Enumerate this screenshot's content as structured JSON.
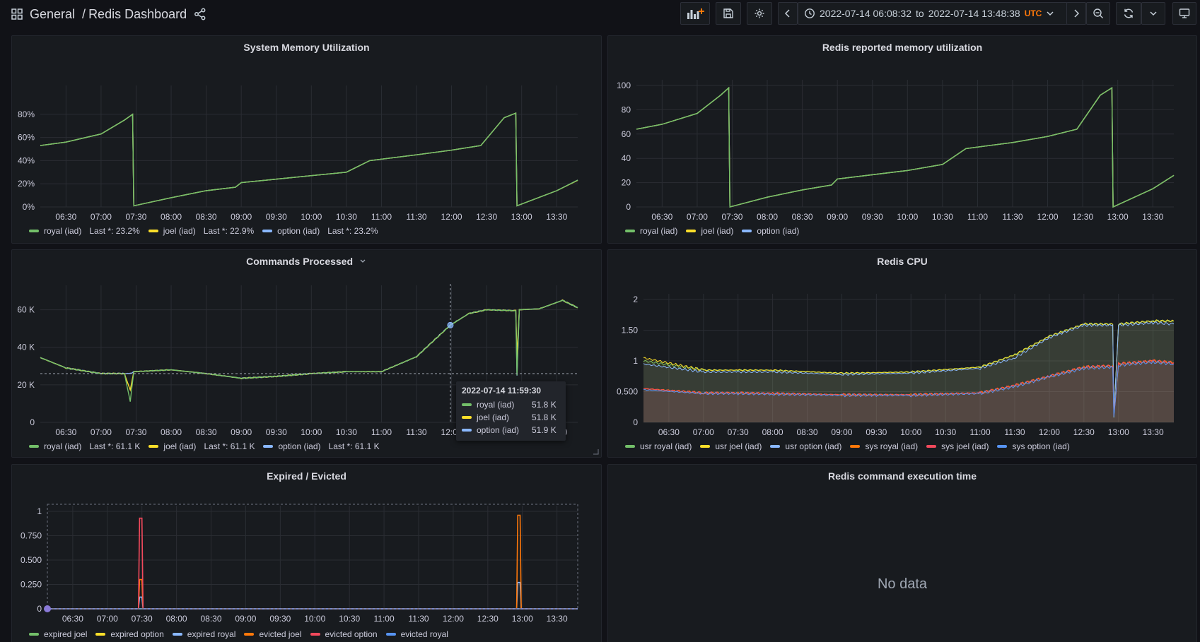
{
  "nav": {
    "breadcrumb_folder": "General",
    "breadcrumb_separator": "/",
    "dashboard_title": "Redis Dashboard",
    "time_from": "2022-07-14 06:08:32",
    "time_to_word": "to",
    "time_to": "2022-07-14 13:48:38",
    "timezone": "UTC",
    "icons": [
      "apps-icon",
      "share-icon",
      "add-panel-icon",
      "save-icon",
      "settings-icon",
      "chevron-left-icon",
      "clock-icon",
      "chevron-down-icon",
      "chevron-right-icon",
      "zoom-out-icon",
      "refresh-icon",
      "chevron-down-icon",
      "tv-mode-icon"
    ]
  },
  "colors": {
    "green": "#73bf69",
    "yellow": "#fade2a",
    "blue": "#8ab8ff",
    "orange": "#ff780a",
    "red": "#f2495c",
    "darkblue": "#5794f2",
    "orange_tz": "#ff780a"
  },
  "time_ticks": [
    "06:30",
    "07:00",
    "07:30",
    "08:00",
    "08:30",
    "09:00",
    "09:30",
    "10:00",
    "10:30",
    "11:00",
    "11:30",
    "12:00",
    "12:30",
    "13:00",
    "13:30"
  ],
  "panels": {
    "system_memory": {
      "title": "System Memory Utilization",
      "y_ticks": [
        "0%",
        "20%",
        "40%",
        "60%",
        "80%"
      ],
      "legend": [
        {
          "name": "royal (iad)",
          "color": "#73bf69",
          "last": "Last *: 23.2%"
        },
        {
          "name": "joel (iad)",
          "color": "#fade2a",
          "last": "Last *: 22.9%"
        },
        {
          "name": "option (iad)",
          "color": "#8ab8ff",
          "last": "Last *: 23.2%"
        }
      ]
    },
    "redis_memory": {
      "title": "Redis reported memory utilization",
      "y_ticks": [
        "0",
        "20",
        "40",
        "60",
        "80",
        "100"
      ],
      "legend": [
        {
          "name": "royal (iad)",
          "color": "#73bf69"
        },
        {
          "name": "joel (iad)",
          "color": "#fade2a"
        },
        {
          "name": "option (iad)",
          "color": "#8ab8ff"
        }
      ]
    },
    "commands": {
      "title": "Commands Processed",
      "y_ticks": [
        "0",
        "20 K",
        "40 K",
        "60 K"
      ],
      "legend": [
        {
          "name": "royal (iad)",
          "color": "#73bf69",
          "last": "Last *: 61.1 K"
        },
        {
          "name": "joel (iad)",
          "color": "#fade2a",
          "last": "Last *: 61.1 K"
        },
        {
          "name": "option (iad)",
          "color": "#8ab8ff",
          "last": "Last *: 61.1 K"
        }
      ],
      "tooltip": {
        "time": "2022-07-14 11:59:30",
        "rows": [
          {
            "name": "royal (iad)",
            "value": "51.8 K",
            "color": "#73bf69"
          },
          {
            "name": "joel (iad)",
            "value": "51.8 K",
            "color": "#fade2a"
          },
          {
            "name": "option (iad)",
            "value": "51.9 K",
            "color": "#8ab8ff"
          }
        ]
      }
    },
    "redis_cpu": {
      "title": "Redis CPU",
      "y_ticks": [
        "0",
        "0.500",
        "1",
        "1.50",
        "2"
      ],
      "legend": [
        {
          "name": "usr royal (iad)",
          "color": "#73bf69"
        },
        {
          "name": "usr joel (iad)",
          "color": "#fade2a"
        },
        {
          "name": "usr option (iad)",
          "color": "#8ab8ff"
        },
        {
          "name": "sys royal (iad)",
          "color": "#ff780a"
        },
        {
          "name": "sys joel (iad)",
          "color": "#f2495c"
        },
        {
          "name": "sys option (iad)",
          "color": "#5794f2"
        }
      ]
    },
    "expired": {
      "title": "Expired / Evicted",
      "y_ticks": [
        "0",
        "0.250",
        "0.500",
        "0.750",
        "1"
      ],
      "legend": [
        {
          "name": "expired joel",
          "color": "#73bf69"
        },
        {
          "name": "expired option",
          "color": "#fade2a"
        },
        {
          "name": "expired royal",
          "color": "#8ab8ff"
        },
        {
          "name": "evicted joel",
          "color": "#ff780a"
        },
        {
          "name": "evicted option",
          "color": "#f2495c"
        },
        {
          "name": "evicted royal",
          "color": "#5794f2"
        }
      ]
    },
    "exec_time": {
      "title": "Redis command execution time",
      "no_data": "No data"
    }
  },
  "chart_data": [
    {
      "type": "line",
      "title": "System Memory Utilization",
      "x": [
        "06:08",
        "06:30",
        "07:00",
        "07:20",
        "07:27",
        "07:28",
        "08:00",
        "08:30",
        "08:55",
        "09:00",
        "10:00",
        "10:30",
        "10:50",
        "11:30",
        "12:00",
        "12:25",
        "12:45",
        "12:55",
        "12:56",
        "13:30",
        "13:48"
      ],
      "ylim": [
        0,
        100
      ],
      "series": [
        {
          "name": "royal (iad)",
          "values": [
            53,
            56,
            63,
            75,
            80,
            1,
            8,
            14,
            17,
            21,
            27,
            30,
            40,
            45,
            49,
            53,
            77,
            81,
            1,
            14,
            23.2
          ]
        },
        {
          "name": "joel (iad)",
          "values": [
            53,
            56,
            63,
            75,
            80,
            1,
            8,
            14,
            17,
            21,
            27,
            30,
            40,
            45,
            49,
            53,
            77,
            81,
            1,
            14,
            22.9
          ]
        },
        {
          "name": "option (iad)",
          "values": [
            53,
            56,
            63,
            75,
            80,
            1,
            8,
            14,
            17,
            21,
            27,
            30,
            40,
            45,
            49,
            53,
            77,
            81,
            1,
            14,
            23.2
          ]
        }
      ]
    },
    {
      "type": "line",
      "title": "Redis reported memory utilization",
      "x": [
        "06:08",
        "06:30",
        "07:00",
        "07:20",
        "07:27",
        "07:28",
        "08:00",
        "08:30",
        "08:55",
        "09:00",
        "10:00",
        "10:30",
        "10:50",
        "11:30",
        "12:00",
        "12:25",
        "12:45",
        "12:55",
        "12:56",
        "13:30",
        "13:48"
      ],
      "ylim": [
        0,
        100
      ],
      "series": [
        {
          "name": "royal (iad)",
          "values": [
            64,
            68,
            77,
            92,
            98,
            0,
            8,
            14,
            18,
            23,
            30,
            35,
            48,
            53,
            58,
            64,
            92,
            98,
            0,
            15,
            26
          ]
        },
        {
          "name": "joel (iad)",
          "values": [
            64,
            68,
            77,
            92,
            98,
            0,
            8,
            14,
            18,
            23,
            30,
            35,
            48,
            53,
            58,
            64,
            92,
            98,
            0,
            15,
            26
          ]
        },
        {
          "name": "option (iad)",
          "values": [
            64,
            68,
            77,
            92,
            98,
            0,
            8,
            14,
            18,
            23,
            30,
            35,
            48,
            53,
            58,
            64,
            92,
            98,
            0,
            15,
            26
          ]
        }
      ]
    },
    {
      "type": "line",
      "title": "Commands Processed",
      "x": [
        "06:08",
        "06:30",
        "07:00",
        "07:20",
        "07:25",
        "07:28",
        "08:00",
        "08:30",
        "09:00",
        "09:30",
        "10:00",
        "10:30",
        "11:00",
        "11:30",
        "11:59",
        "12:15",
        "12:30",
        "12:55",
        "12:56",
        "12:58",
        "13:15",
        "13:35",
        "13:48"
      ],
      "ylim": [
        0,
        70000
      ],
      "series": [
        {
          "name": "royal (iad)",
          "values": [
            34500,
            29000,
            26000,
            26000,
            11000,
            27000,
            28000,
            26000,
            23500,
            24500,
            26000,
            27000,
            27000,
            35000,
            51800,
            58000,
            60000,
            59500,
            25000,
            60000,
            60500,
            65000,
            61100
          ]
        },
        {
          "name": "joel (iad)",
          "values": [
            34500,
            29000,
            26000,
            26000,
            17000,
            27000,
            28000,
            26000,
            23500,
            24500,
            26000,
            27000,
            27000,
            35000,
            51800,
            58000,
            60000,
            59500,
            35000,
            60000,
            60500,
            65000,
            61100
          ]
        },
        {
          "name": "option (iad)",
          "values": [
            34500,
            29000,
            26000,
            26000,
            26000,
            27000,
            28000,
            26000,
            23500,
            24500,
            26000,
            27000,
            27000,
            35000,
            51900,
            58000,
            60000,
            59500,
            25000,
            60000,
            60500,
            65000,
            61100
          ]
        }
      ]
    },
    {
      "type": "area",
      "title": "Redis CPU",
      "x": [
        "06:08",
        "07:00",
        "07:30",
        "08:00",
        "09:00",
        "10:00",
        "11:00",
        "11:30",
        "12:00",
        "12:30",
        "12:55",
        "12:56",
        "13:00",
        "13:30",
        "13:48"
      ],
      "ylim": [
        0,
        2
      ],
      "series": [
        {
          "name": "usr royal (iad)",
          "values": [
            1.0,
            0.85,
            0.85,
            0.85,
            0.8,
            0.82,
            0.9,
            1.1,
            1.4,
            1.6,
            1.6,
            0.1,
            1.6,
            1.65,
            1.65
          ]
        },
        {
          "name": "usr joel (iad)",
          "values": [
            1.05,
            0.85,
            0.85,
            0.85,
            0.8,
            0.82,
            0.9,
            1.1,
            1.4,
            1.6,
            1.6,
            0.1,
            1.6,
            1.65,
            1.65
          ]
        },
        {
          "name": "usr option (iad)",
          "values": [
            0.95,
            0.82,
            0.82,
            0.82,
            0.78,
            0.8,
            0.88,
            1.05,
            1.38,
            1.58,
            1.58,
            0.1,
            1.58,
            1.62,
            1.6
          ]
        },
        {
          "name": "sys royal (iad)",
          "values": [
            0.55,
            0.48,
            0.48,
            0.47,
            0.45,
            0.45,
            0.48,
            0.6,
            0.75,
            0.9,
            0.92,
            0.1,
            0.95,
            1.0,
            0.97
          ]
        },
        {
          "name": "sys joel (iad)",
          "values": [
            0.55,
            0.48,
            0.48,
            0.47,
            0.45,
            0.45,
            0.48,
            0.6,
            0.75,
            0.9,
            0.92,
            0.1,
            0.95,
            1.0,
            0.97
          ]
        },
        {
          "name": "sys option (iad)",
          "values": [
            0.53,
            0.47,
            0.47,
            0.46,
            0.44,
            0.44,
            0.47,
            0.58,
            0.74,
            0.88,
            0.9,
            0.1,
            0.93,
            0.98,
            0.95
          ]
        }
      ]
    },
    {
      "type": "line",
      "title": "Expired / Evicted",
      "x": [
        "06:08",
        "07:27",
        "07:28",
        "07:30",
        "07:31",
        "12:55",
        "12:56",
        "12:58",
        "12:59",
        "13:48"
      ],
      "ylim": [
        0,
        1
      ],
      "series": [
        {
          "name": "expired joel",
          "values": [
            0,
            0,
            0,
            0,
            0,
            0,
            0,
            0,
            0,
            0
          ]
        },
        {
          "name": "expired option",
          "values": [
            0,
            0,
            0,
            0,
            0,
            0,
            0,
            0,
            0,
            0
          ]
        },
        {
          "name": "expired royal",
          "values": [
            0,
            0,
            0.12,
            0.12,
            0,
            0,
            0.27,
            0.27,
            0,
            0
          ]
        },
        {
          "name": "evicted joel",
          "values": [
            0,
            0,
            0.3,
            0.3,
            0,
            0,
            0.96,
            0.96,
            0,
            0
          ]
        },
        {
          "name": "evicted option",
          "values": [
            0,
            0,
            0.93,
            0.93,
            0,
            0,
            0,
            0,
            0,
            0
          ]
        },
        {
          "name": "evicted royal",
          "values": [
            0,
            0,
            0,
            0,
            0,
            0,
            0,
            0,
            0,
            0
          ]
        }
      ]
    }
  ]
}
